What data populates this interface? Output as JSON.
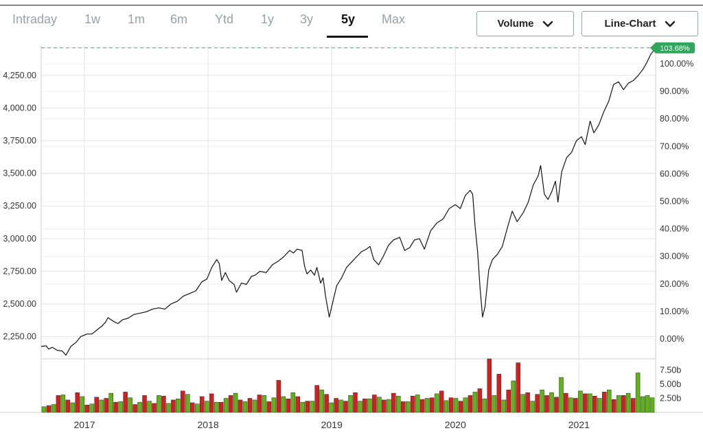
{
  "range_tabs": [
    {
      "label": "Intraday",
      "active": false
    },
    {
      "label": "1w",
      "active": false
    },
    {
      "label": "1m",
      "active": false
    },
    {
      "label": "6m",
      "active": false
    },
    {
      "label": "Ytd",
      "active": false
    },
    {
      "label": "1y",
      "active": false
    },
    {
      "label": "3y",
      "active": false
    },
    {
      "label": "5y",
      "active": true
    },
    {
      "label": "Max",
      "active": false
    }
  ],
  "controls": {
    "volume_label": "Volume",
    "chart_type_label": "Line-Chart"
  },
  "colors": {
    "line": "#111111",
    "volume_up": "#5fb41a",
    "volume_down": "#d31f1f",
    "reference_line": "#2fb36a",
    "tag_bg": "#2fa65c",
    "grid": "#e3e3e3"
  },
  "chart_data": {
    "type": "line",
    "current_change_label": "103.68%",
    "price_axis": {
      "ticks": [
        "2,250.00",
        "2,500.00",
        "2,750.00",
        "3,000.00",
        "3,250.00",
        "3,500.00",
        "3,750.00",
        "4,000.00",
        "4,250.00"
      ],
      "values": [
        2250,
        2500,
        2750,
        3000,
        3250,
        3500,
        3750,
        4000,
        4250
      ],
      "range": [
        2080,
        4480
      ]
    },
    "percent_axis": {
      "ticks": [
        "0.00%",
        "10.00%",
        "20.00%",
        "30.00%",
        "40.00%",
        "50.00%",
        "60.00%",
        "70.00%",
        "80.00%",
        "90.00%",
        "100.00%"
      ],
      "values": [
        0,
        10,
        20,
        30,
        40,
        50,
        60,
        70,
        80,
        90,
        100
      ]
    },
    "volume_axis": {
      "ticks": [
        "2.50b",
        "5.00b",
        "7.50b"
      ],
      "values": [
        2.5,
        5.0,
        7.5
      ],
      "range": [
        0,
        9.5
      ]
    },
    "x_axis": {
      "labels": [
        "2017",
        "2018",
        "2019",
        "2020",
        "2021"
      ],
      "positions": [
        2017.0,
        2018.0,
        2019.0,
        2020.0,
        2021.0
      ],
      "range": [
        2016.65,
        2021.62
      ]
    },
    "series": [
      {
        "values": [
          [
            2016.65,
            2175
          ],
          [
            2016.69,
            2180
          ],
          [
            2016.71,
            2155
          ],
          [
            2016.74,
            2168
          ],
          [
            2016.78,
            2145
          ],
          [
            2016.82,
            2140
          ],
          [
            2016.85,
            2108
          ],
          [
            2016.89,
            2175
          ],
          [
            2016.93,
            2205
          ],
          [
            2016.97,
            2250
          ],
          [
            2017.02,
            2270
          ],
          [
            2017.06,
            2270
          ],
          [
            2017.1,
            2300
          ],
          [
            2017.14,
            2330
          ],
          [
            2017.17,
            2360
          ],
          [
            2017.19,
            2395
          ],
          [
            2017.23,
            2370
          ],
          [
            2017.27,
            2350
          ],
          [
            2017.31,
            2380
          ],
          [
            2017.35,
            2390
          ],
          [
            2017.4,
            2420
          ],
          [
            2017.45,
            2430
          ],
          [
            2017.5,
            2440
          ],
          [
            2017.55,
            2460
          ],
          [
            2017.6,
            2470
          ],
          [
            2017.65,
            2460
          ],
          [
            2017.7,
            2500
          ],
          [
            2017.75,
            2520
          ],
          [
            2017.8,
            2560
          ],
          [
            2017.85,
            2580
          ],
          [
            2017.9,
            2600
          ],
          [
            2017.95,
            2670
          ],
          [
            2017.99,
            2690
          ],
          [
            2018.03,
            2780
          ],
          [
            2018.07,
            2840
          ],
          [
            2018.09,
            2810
          ],
          [
            2018.11,
            2680
          ],
          [
            2018.14,
            2740
          ],
          [
            2018.17,
            2680
          ],
          [
            2018.21,
            2650
          ],
          [
            2018.23,
            2590
          ],
          [
            2018.27,
            2660
          ],
          [
            2018.31,
            2650
          ],
          [
            2018.35,
            2710
          ],
          [
            2018.38,
            2720
          ],
          [
            2018.42,
            2750
          ],
          [
            2018.47,
            2740
          ],
          [
            2018.52,
            2800
          ],
          [
            2018.57,
            2830
          ],
          [
            2018.61,
            2860
          ],
          [
            2018.66,
            2910
          ],
          [
            2018.69,
            2890
          ],
          [
            2018.72,
            2920
          ],
          [
            2018.76,
            2910
          ],
          [
            2018.78,
            2790
          ],
          [
            2018.8,
            2730
          ],
          [
            2018.83,
            2760
          ],
          [
            2018.86,
            2720
          ],
          [
            2018.88,
            2780
          ],
          [
            2018.91,
            2660
          ],
          [
            2018.93,
            2700
          ],
          [
            2018.95,
            2560
          ],
          [
            2018.98,
            2400
          ],
          [
            2019.01,
            2520
          ],
          [
            2019.04,
            2640
          ],
          [
            2019.08,
            2700
          ],
          [
            2019.12,
            2780
          ],
          [
            2019.16,
            2820
          ],
          [
            2019.2,
            2860
          ],
          [
            2019.24,
            2900
          ],
          [
            2019.28,
            2920
          ],
          [
            2019.31,
            2940
          ],
          [
            2019.34,
            2840
          ],
          [
            2019.38,
            2800
          ],
          [
            2019.42,
            2870
          ],
          [
            2019.46,
            2950
          ],
          [
            2019.5,
            2990
          ],
          [
            2019.55,
            3010
          ],
          [
            2019.59,
            2910
          ],
          [
            2019.63,
            2930
          ],
          [
            2019.67,
            2990
          ],
          [
            2019.71,
            3000
          ],
          [
            2019.75,
            2920
          ],
          [
            2019.8,
            3060
          ],
          [
            2019.85,
            3120
          ],
          [
            2019.9,
            3150
          ],
          [
            2019.95,
            3230
          ],
          [
            2020.0,
            3260
          ],
          [
            2020.04,
            3230
          ],
          [
            2020.08,
            3330
          ],
          [
            2020.12,
            3370
          ],
          [
            2020.14,
            3340
          ],
          [
            2020.16,
            3090
          ],
          [
            2020.18,
            2900
          ],
          [
            2020.2,
            2620
          ],
          [
            2020.22,
            2400
          ],
          [
            2020.24,
            2480
          ],
          [
            2020.27,
            2760
          ],
          [
            2020.3,
            2840
          ],
          [
            2020.34,
            2880
          ],
          [
            2020.38,
            2940
          ],
          [
            2020.42,
            3080
          ],
          [
            2020.46,
            3210
          ],
          [
            2020.5,
            3130
          ],
          [
            2020.55,
            3200
          ],
          [
            2020.59,
            3280
          ],
          [
            2020.63,
            3410
          ],
          [
            2020.67,
            3480
          ],
          [
            2020.69,
            3560
          ],
          [
            2020.72,
            3340
          ],
          [
            2020.75,
            3300
          ],
          [
            2020.78,
            3360
          ],
          [
            2020.81,
            3440
          ],
          [
            2020.83,
            3280
          ],
          [
            2020.86,
            3510
          ],
          [
            2020.9,
            3620
          ],
          [
            2020.94,
            3660
          ],
          [
            2020.98,
            3750
          ],
          [
            2021.02,
            3780
          ],
          [
            2021.05,
            3720
          ],
          [
            2021.09,
            3900
          ],
          [
            2021.12,
            3810
          ],
          [
            2021.16,
            3870
          ],
          [
            2021.2,
            3970
          ],
          [
            2021.24,
            4050
          ],
          [
            2021.28,
            4180
          ],
          [
            2021.32,
            4200
          ],
          [
            2021.36,
            4140
          ],
          [
            2021.4,
            4190
          ],
          [
            2021.44,
            4210
          ],
          [
            2021.48,
            4250
          ],
          [
            2021.52,
            4300
          ],
          [
            2021.55,
            4350
          ],
          [
            2021.58,
            4410
          ],
          [
            2021.62,
            4460
          ]
        ]
      }
    ],
    "volume": {
      "up": [
        1.0,
        1.4,
        3.1,
        1.7,
        2.8,
        1.5,
        2.2,
        3.4,
        1.9,
        2.6,
        1.8,
        2.0,
        3.0,
        1.6,
        2.4,
        3.2,
        1.5,
        2.0,
        1.8,
        2.5,
        3.4,
        1.9,
        2.2,
        3.0,
        2.6,
        2.8,
        3.5,
        1.8,
        2.0,
        4.0,
        1.7,
        2.2,
        3.0,
        2.0,
        2.4,
        2.7,
        2.3,
        2.9,
        1.9,
        3.1,
        2.5,
        3.3,
        2.1,
        2.5,
        2.6,
        3.6,
        2.4,
        3.0,
        2.2,
        5.6,
        3.2,
        2.0,
        4.0,
        3.5,
        6.2,
        2.6,
        3.8,
        3.3,
        2.5,
        4.0,
        3.0,
        3.4,
        7.0,
        2.8,
        3.0,
        2.6
      ],
      "down": [
        1.2,
        3.0,
        2.2,
        3.5,
        1.3,
        2.7,
        2.5,
        1.8,
        3.6,
        1.4,
        3.0,
        1.6,
        2.9,
        2.2,
        3.8,
        1.7,
        2.8,
        3.3,
        1.8,
        3.0,
        2.2,
        2.5,
        3.1,
        1.9,
        5.7,
        2.4,
        2.8,
        2.0,
        4.8,
        3.2,
        2.5,
        2.0,
        3.5,
        2.4,
        3.1,
        2.2,
        3.4,
        1.9,
        2.9,
        2.3,
        2.6,
        3.8,
        2.6,
        2.0,
        3.0,
        4.2,
        9.5,
        6.8,
        4.0,
        8.8,
        3.5,
        3.2,
        3.0,
        2.7,
        3.4,
        2.5,
        3.3,
        2.9,
        3.6,
        2.3,
        3.0,
        2.5
      ]
    },
    "grid": true,
    "legend": "none"
  }
}
